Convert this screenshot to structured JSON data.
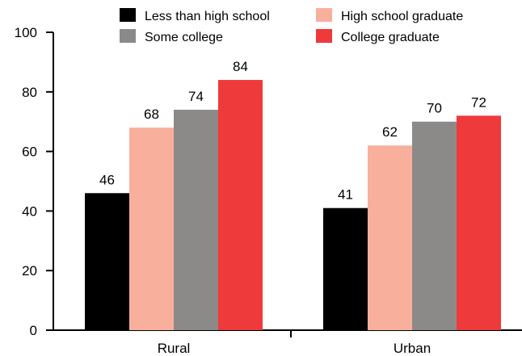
{
  "chart_data": {
    "type": "bar",
    "title": "",
    "xlabel": "",
    "ylabel": "",
    "categories": [
      "Rural",
      "Urban"
    ],
    "ylim": [
      0,
      100
    ],
    "yticks": [
      "0",
      "20",
      "40",
      "60",
      "80",
      "100"
    ],
    "grid": false,
    "legend_position": "top",
    "series": [
      {
        "name": "Less than high school",
        "color": "#000000",
        "values": [
          46,
          41
        ]
      },
      {
        "name": "High school graduate",
        "color": "#f8b09c",
        "values": [
          68,
          62
        ]
      },
      {
        "name": "Some college",
        "color": "#8c8a89",
        "values": [
          74,
          70
        ]
      },
      {
        "name": "College graduate",
        "color": "#ee3a3a",
        "values": [
          84,
          72
        ]
      }
    ]
  }
}
